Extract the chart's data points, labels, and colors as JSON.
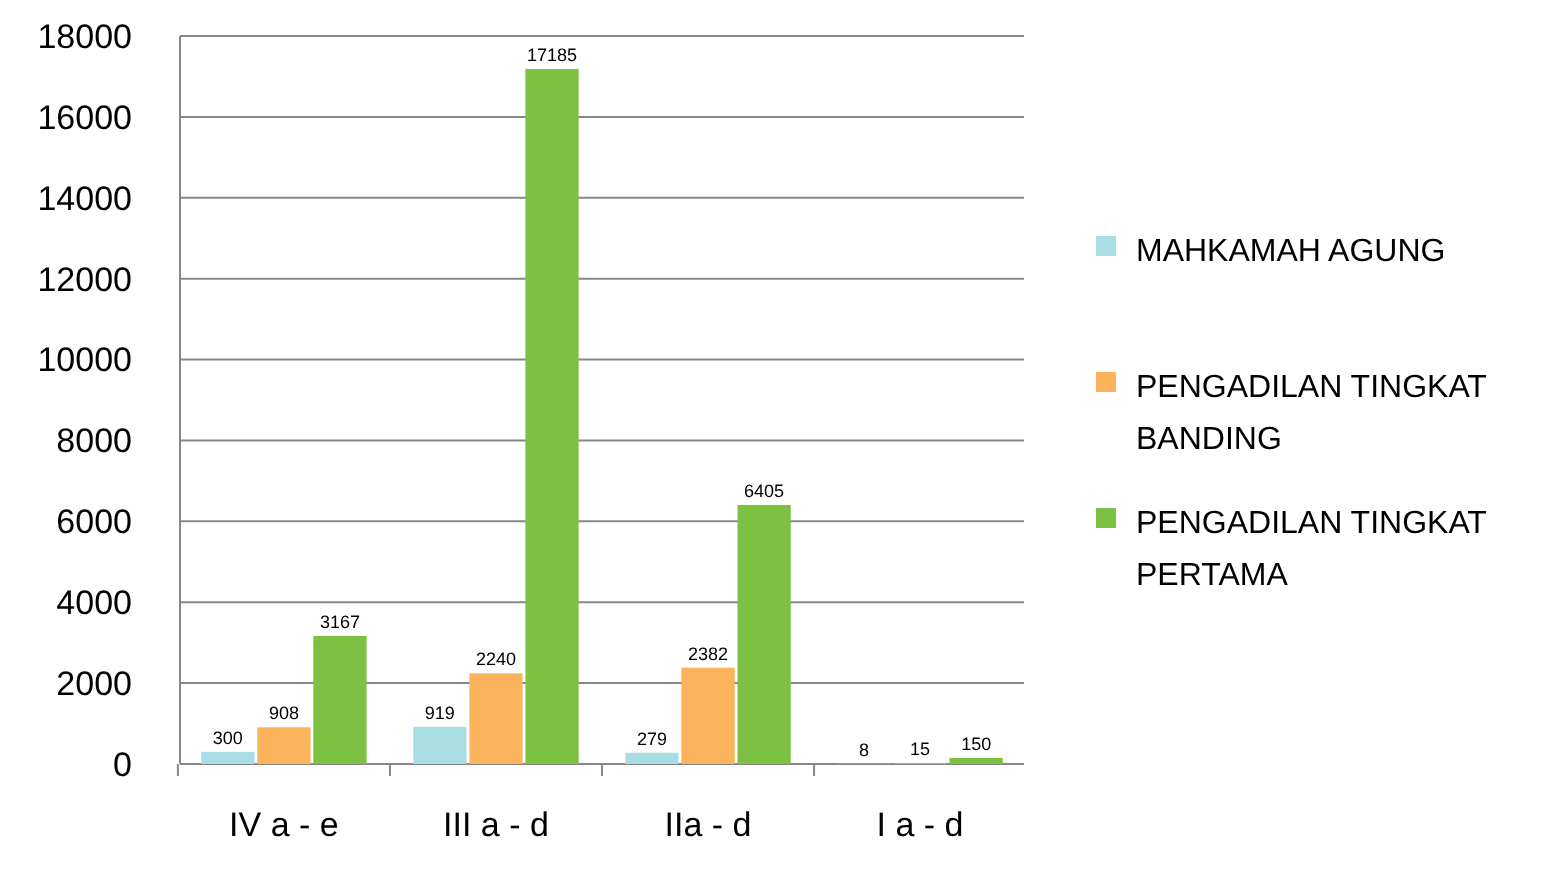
{
  "chart_data": {
    "type": "bar",
    "categories": [
      "IV a - e",
      "III a - d",
      "IIa - d",
      "I a - d"
    ],
    "series": [
      {
        "name": "MAHKAMAH AGUNG",
        "color": "#a8dde3",
        "values": [
          300,
          919,
          279,
          8
        ]
      },
      {
        "name": "PENGADILAN TINGKAT BANDING",
        "color": "#fbb45c",
        "values": [
          908,
          2240,
          2382,
          15
        ]
      },
      {
        "name": "PENGADILAN TINGKAT PERTAMA",
        "color": "#7dc142",
        "values": [
          3167,
          17185,
          6405,
          150
        ]
      }
    ],
    "ylim": [
      0,
      18000
    ],
    "yticks": [
      0,
      2000,
      4000,
      6000,
      8000,
      10000,
      12000,
      14000,
      16000,
      18000
    ],
    "grid": "y",
    "legend": "right",
    "data_labels": true
  }
}
